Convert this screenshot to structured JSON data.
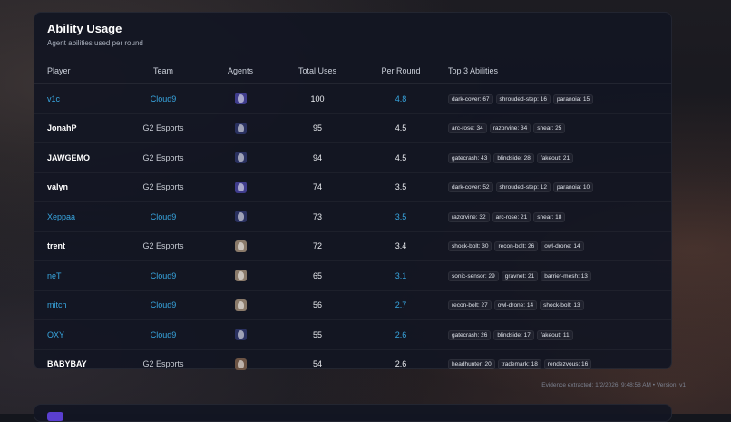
{
  "card": {
    "title": "Ability Usage",
    "subtitle": "Agent abilities used per round"
  },
  "columns": {
    "player": "Player",
    "team": "Team",
    "agents": "Agents",
    "total": "Total Uses",
    "per_round": "Per Round",
    "top3": "Top 3 Abilities"
  },
  "colors": {
    "accent_blue": "#38a6e0",
    "agent_purple": "#3f3c8c",
    "agent_navy": "#2a3160",
    "agent_tan": "#8a7a6a",
    "agent_brown": "#6b5344"
  },
  "rows": [
    {
      "player": "v1c",
      "team": "Cloud9",
      "agent_icon": "agent-omen-icon",
      "total": "100",
      "per_round": "4.8",
      "abilities": [
        "dark-cover: 67",
        "shrouded-step: 16",
        "paranoia: 15"
      ]
    },
    {
      "player": "JonahP",
      "team": "G2 Esports",
      "agent_icon": "agent-neon-icon",
      "total": "95",
      "per_round": "4.5",
      "abilities": [
        "arc-rose: 34",
        "razorvine: 34",
        "shear: 25"
      ]
    },
    {
      "player": "JAWGEMO",
      "team": "G2 Esports",
      "agent_icon": "agent-yoru-icon",
      "total": "94",
      "per_round": "4.5",
      "abilities": [
        "gatecrash: 43",
        "blindside: 28",
        "fakeout: 21"
      ]
    },
    {
      "player": "valyn",
      "team": "G2 Esports",
      "agent_icon": "agent-omen-icon",
      "total": "74",
      "per_round": "3.5",
      "abilities": [
        "dark-cover: 52",
        "shrouded-step: 12",
        "paranoia: 10"
      ]
    },
    {
      "player": "Xeppaa",
      "team": "Cloud9",
      "agent_icon": "agent-neon-icon",
      "total": "73",
      "per_round": "3.5",
      "abilities": [
        "razorvine: 32",
        "arc-rose: 21",
        "shear: 18"
      ]
    },
    {
      "player": "trent",
      "team": "G2 Esports",
      "agent_icon": "agent-sova-icon",
      "total": "72",
      "per_round": "3.4",
      "abilities": [
        "shock-bolt: 30",
        "recon-bolt: 26",
        "owl-drone: 14"
      ]
    },
    {
      "player": "neT",
      "team": "Cloud9",
      "agent_icon": "agent-cypher-icon",
      "total": "65",
      "per_round": "3.1",
      "abilities": [
        "sonic-sensor: 29",
        "gravnet: 21",
        "barrier-mesh: 13"
      ]
    },
    {
      "player": "mitch",
      "team": "Cloud9",
      "agent_icon": "agent-sova-icon",
      "total": "56",
      "per_round": "2.7",
      "abilities": [
        "recon-bolt: 27",
        "owl-drone: 14",
        "shock-bolt: 13"
      ]
    },
    {
      "player": "OXY",
      "team": "Cloud9",
      "agent_icon": "agent-yoru-icon",
      "total": "55",
      "per_round": "2.6",
      "abilities": [
        "gatecrash: 26",
        "blindside: 17",
        "fakeout: 11"
      ]
    },
    {
      "player": "BABYBAY",
      "team": "G2 Esports",
      "agent_icon": "agent-chamber-icon",
      "total": "54",
      "per_round": "2.6",
      "abilities": [
        "headhunter: 20",
        "trademark: 18",
        "rendezvous: 16"
      ]
    }
  ],
  "footer": "Evidence extracted: 1/2/2026, 9:48:58 AM • Version: v1"
}
